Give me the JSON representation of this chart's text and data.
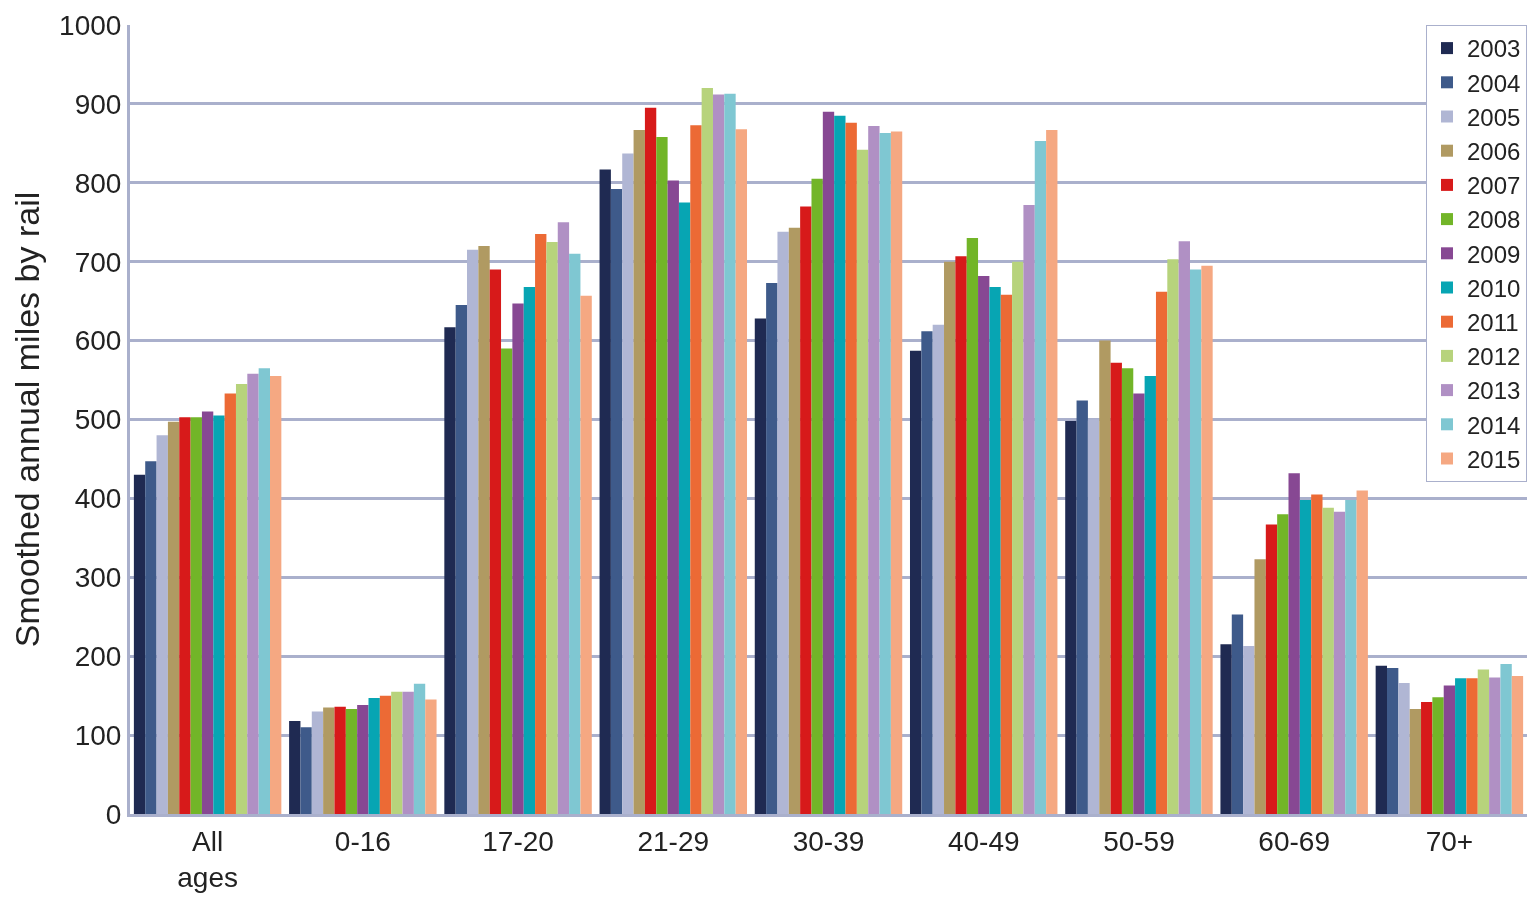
{
  "chart_data": {
    "type": "bar",
    "ylabel": "Smoothed annual miles by rail",
    "categories": [
      "All ages",
      "0-16",
      "17-20",
      "21-29",
      "30-39",
      "40-49",
      "50-59",
      "60-69",
      "70+"
    ],
    "series": [
      {
        "name": "2003",
        "color": "#1f2a52",
        "values": [
          430,
          118,
          617,
          817,
          628,
          587,
          498,
          215,
          188
        ]
      },
      {
        "name": "2004",
        "color": "#3e5a8a",
        "values": [
          447,
          110,
          645,
          792,
          673,
          612,
          524,
          253,
          185
        ]
      },
      {
        "name": "2005",
        "color": "#b0b6d4",
        "values": [
          480,
          130,
          715,
          837,
          738,
          620,
          500,
          213,
          166
        ]
      },
      {
        "name": "2006",
        "color": "#b09a62",
        "values": [
          497,
          135,
          720,
          867,
          743,
          700,
          600,
          323,
          133
        ]
      },
      {
        "name": "2007",
        "color": "#d71a1a",
        "values": [
          503,
          136,
          690,
          895,
          770,
          707,
          572,
          367,
          142
        ]
      },
      {
        "name": "2008",
        "color": "#72b528",
        "values": [
          503,
          133,
          590,
          858,
          805,
          730,
          565,
          380,
          148
        ]
      },
      {
        "name": "2009",
        "color": "#874893",
        "values": [
          510,
          138,
          647,
          803,
          890,
          682,
          533,
          432,
          163
        ]
      },
      {
        "name": "2010",
        "color": "#07a5b3",
        "values": [
          505,
          147,
          668,
          775,
          885,
          668,
          555,
          398,
          172
        ]
      },
      {
        "name": "2011",
        "color": "#ec6a35",
        "values": [
          533,
          150,
          735,
          873,
          876,
          658,
          662,
          405,
          172
        ]
      },
      {
        "name": "2012",
        "color": "#b7d37c",
        "values": [
          545,
          155,
          725,
          920,
          842,
          700,
          703,
          388,
          183
        ]
      },
      {
        "name": "2013",
        "color": "#b090c4",
        "values": [
          558,
          155,
          750,
          912,
          872,
          772,
          726,
          383,
          173
        ]
      },
      {
        "name": "2014",
        "color": "#7fc7d2",
        "values": [
          565,
          165,
          710,
          913,
          863,
          853,
          690,
          398,
          190
        ]
      },
      {
        "name": "2015",
        "color": "#f5a882",
        "values": [
          555,
          145,
          657,
          868,
          865,
          867,
          695,
          410,
          175
        ]
      }
    ],
    "ylim": [
      0,
      1000
    ],
    "yticks": [
      0,
      100,
      200,
      300,
      400,
      500,
      600,
      700,
      800,
      900,
      1000
    ],
    "grid": "y",
    "legend": "top right"
  }
}
